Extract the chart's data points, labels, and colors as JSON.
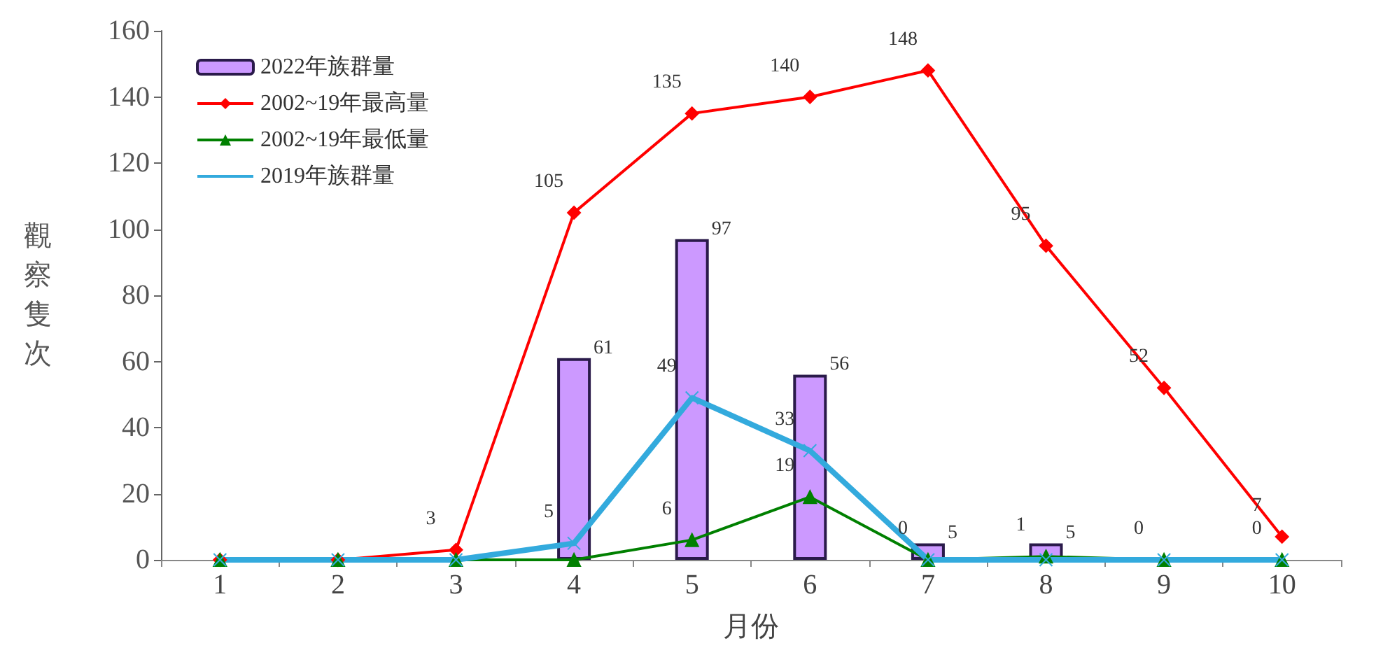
{
  "chart_data": {
    "type": "bar",
    "xlabel": "月份",
    "ylabel": "觀察隻次",
    "categories": [
      "1",
      "2",
      "3",
      "4",
      "5",
      "6",
      "7",
      "8",
      "9",
      "10"
    ],
    "ylim": [
      0,
      160
    ],
    "yticks": [
      0,
      20,
      40,
      60,
      80,
      100,
      120,
      140,
      160
    ],
    "grid": false,
    "legend": "top left",
    "series": [
      {
        "name": "2022年族群量",
        "color": "#cc99ff",
        "values": [
          null,
          null,
          null,
          61,
          97,
          56,
          5,
          5,
          null,
          null
        ],
        "value_labels": [
          null,
          null,
          null,
          "61",
          "97",
          "56",
          "5",
          "5",
          null,
          null
        ]
      },
      {
        "name": "2002~19年最高量",
        "type": "line",
        "color": "#ff0000",
        "marker": "diamond",
        "values": [
          0,
          0,
          3,
          105,
          135,
          140,
          148,
          95,
          52,
          7
        ],
        "value_labels": [
          null,
          null,
          "3",
          "105",
          "135",
          "140",
          "148",
          "95",
          "52",
          "7"
        ]
      },
      {
        "name": "2002~19年最低量",
        "type": "line",
        "color": "#008000",
        "marker": "triangle",
        "values": [
          0,
          0,
          0,
          0,
          6,
          19,
          0,
          1,
          0,
          0
        ],
        "value_labels": [
          null,
          null,
          null,
          null,
          "6",
          "19",
          null,
          "1",
          null,
          null
        ]
      },
      {
        "name": "2019年族群量",
        "type": "line",
        "color": "#33aadd",
        "marker": "cross",
        "values": [
          0,
          0,
          0,
          5,
          49,
          33,
          0,
          0,
          0,
          0
        ],
        "value_labels": [
          null,
          null,
          null,
          "5",
          "49",
          "33",
          "0",
          null,
          "0",
          "0"
        ]
      }
    ]
  }
}
